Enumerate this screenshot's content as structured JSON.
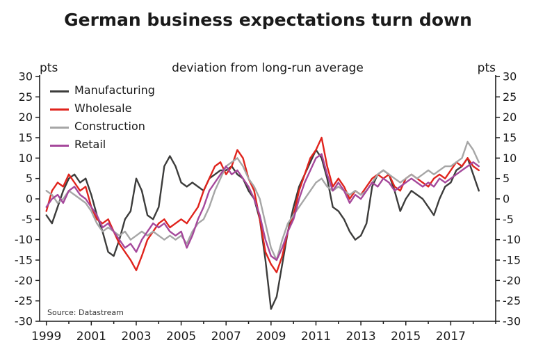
{
  "title": "German business expectations turn down",
  "chart_data": {
    "type": "line",
    "title": "German business expectations turn down",
    "subtitle": "deviation from long-run average",
    "axis_unit_left": "pts",
    "axis_unit_right": "pts",
    "source": "Source: Datastream",
    "grid": false,
    "legend_position": "top-left",
    "ylim": [
      -30,
      30
    ],
    "ytick_step": 5,
    "xlim": [
      1998.7,
      2019.0
    ],
    "xticks": [
      1999,
      2001,
      2003,
      2005,
      2007,
      2009,
      2011,
      2013,
      2015,
      2017
    ],
    "axis_color": "#1a1a1a",
    "x": [
      1999,
      1999.25,
      1999.5,
      1999.75,
      2000,
      2000.25,
      2000.5,
      2000.75,
      2001,
      2001.25,
      2001.5,
      2001.75,
      2002,
      2002.25,
      2002.5,
      2002.75,
      2003,
      2003.25,
      2003.5,
      2003.75,
      2004,
      2004.25,
      2004.5,
      2004.75,
      2005,
      2005.25,
      2005.5,
      2005.75,
      2006,
      2006.25,
      2006.5,
      2006.75,
      2007,
      2007.25,
      2007.5,
      2007.75,
      2008,
      2008.25,
      2008.5,
      2008.75,
      2009,
      2009.25,
      2009.5,
      2009.75,
      2010,
      2010.25,
      2010.5,
      2010.75,
      2011,
      2011.25,
      2011.5,
      2011.75,
      2012,
      2012.25,
      2012.5,
      2012.75,
      2013,
      2013.25,
      2013.5,
      2013.75,
      2014,
      2014.25,
      2014.5,
      2014.75,
      2015,
      2015.25,
      2015.5,
      2015.75,
      2016,
      2016.25,
      2016.5,
      2016.75,
      2017,
      2017.25,
      2017.5,
      2017.75,
      2018,
      2018.25
    ],
    "series": [
      {
        "name": "Manufacturing",
        "color": "#3c3c3b",
        "values": [
          -4,
          -6,
          -2,
          2,
          5,
          6,
          4,
          5,
          1,
          -4,
          -8,
          -13,
          -14,
          -10,
          -5,
          -3,
          5,
          2,
          -4,
          -5,
          -2,
          8,
          10.5,
          8,
          4,
          3,
          4,
          3,
          2,
          5,
          6,
          7,
          7,
          8,
          6,
          5,
          2,
          0,
          -5,
          -15,
          -27,
          -24,
          -16,
          -8,
          -2,
          3,
          6,
          9,
          12,
          10,
          5,
          -2,
          -3,
          -5,
          -8,
          -10,
          -9,
          -6,
          3,
          6,
          7,
          6,
          2,
          -3,
          0,
          2,
          1,
          0,
          -2,
          -4,
          0,
          3,
          4,
          7,
          8,
          10,
          6,
          2
        ]
      },
      {
        "name": "Wholesale",
        "color": "#e0231c",
        "values": [
          -3,
          2,
          4,
          3,
          6,
          4,
          2,
          3,
          -2,
          -5,
          -6,
          -5,
          -8,
          -11,
          -13,
          -15,
          -17.5,
          -14,
          -10,
          -8,
          -6,
          -5,
          -7,
          -6,
          -5,
          -6,
          -4,
          -2,
          2,
          5,
          8,
          9,
          6,
          8,
          12,
          10,
          5,
          2,
          -5,
          -13,
          -16,
          -18,
          -14,
          -8,
          -4,
          2,
          6,
          10,
          12,
          15,
          8,
          3,
          5,
          3,
          0,
          2,
          1,
          3,
          5,
          6,
          5,
          6,
          3,
          2,
          5,
          6,
          5,
          4,
          3,
          5,
          6,
          5,
          7,
          9,
          8,
          10,
          8,
          7
        ]
      },
      {
        "name": "Construction",
        "color": "#a6a6a6",
        "values": [
          2,
          1,
          -1,
          0,
          2,
          1,
          0,
          -1,
          -3,
          -6,
          -8,
          -7,
          -8,
          -9,
          -8,
          -10,
          -9,
          -8,
          -9,
          -8,
          -9,
          -10,
          -9,
          -10,
          -9,
          -11,
          -8,
          -6,
          -5,
          -2,
          2,
          5,
          8,
          9,
          10,
          8,
          5,
          3,
          0,
          -6,
          -12,
          -15,
          -10,
          -6,
          -4,
          -2,
          0,
          2,
          4,
          5,
          3,
          2,
          3,
          2,
          1,
          2,
          1,
          2,
          4,
          6,
          7,
          6,
          5,
          4,
          5,
          6,
          5,
          6,
          7,
          6,
          7,
          8,
          8,
          9,
          10,
          14,
          12,
          9
        ]
      },
      {
        "name": "Retail",
        "color": "#a5489b",
        "values": [
          -2,
          0,
          1,
          -1,
          2,
          3,
          1,
          0,
          -2,
          -4,
          -7,
          -6,
          -8,
          -10,
          -12,
          -11,
          -13,
          -10,
          -8,
          -6,
          -7,
          -6,
          -8,
          -9,
          -8,
          -12,
          -9,
          -5,
          -2,
          2,
          4,
          6,
          8,
          6,
          7,
          5,
          3,
          0,
          -4,
          -10,
          -14,
          -15,
          -12,
          -8,
          -5,
          0,
          4,
          7,
          10,
          11,
          6,
          2,
          4,
          2,
          -1,
          1,
          0,
          2,
          4,
          3,
          5,
          4,
          2,
          3,
          4,
          5,
          4,
          3,
          4,
          3,
          5,
          4,
          5,
          6,
          7,
          8,
          9,
          8
        ]
      }
    ]
  }
}
